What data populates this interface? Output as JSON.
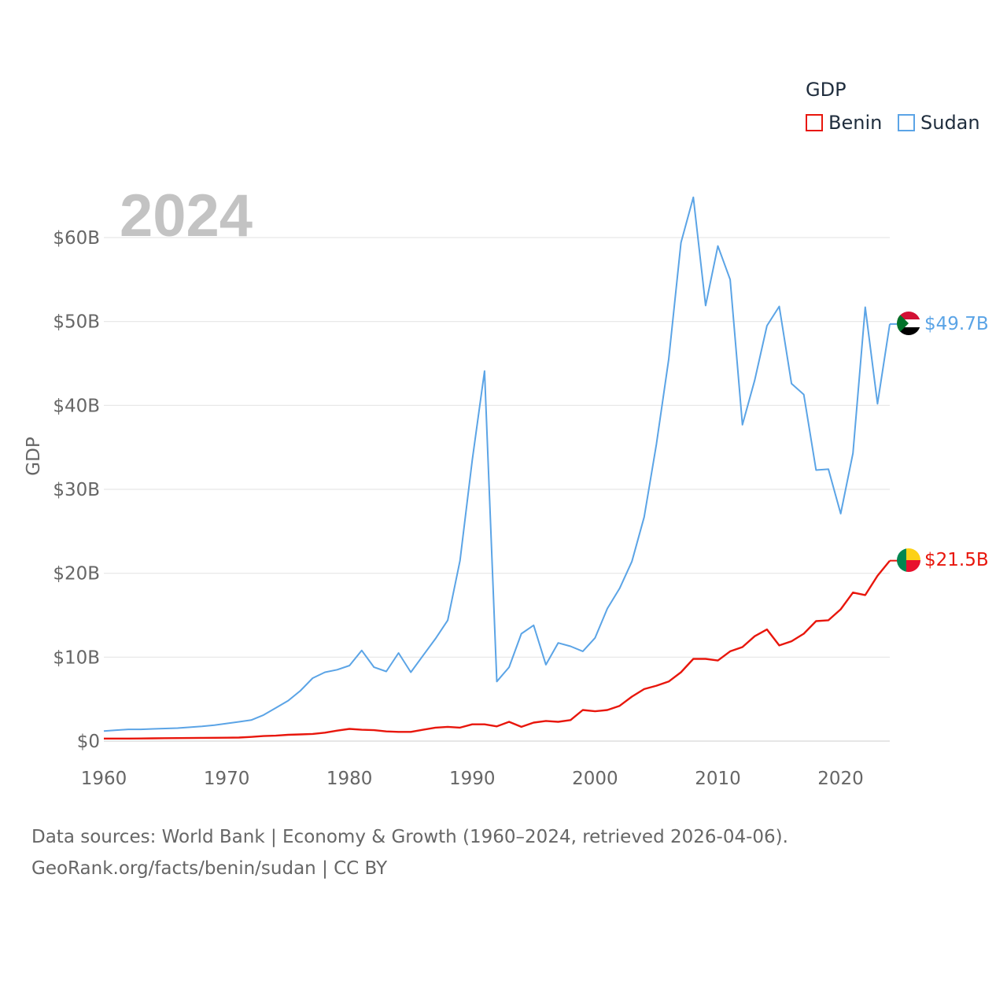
{
  "legend": {
    "title": "GDP",
    "items": [
      {
        "label": "Benin",
        "color": "#e8160c"
      },
      {
        "label": "Sudan",
        "color": "#5ba4e6"
      }
    ]
  },
  "footer": {
    "line1": "Data sources: World Bank | Economy & Growth (1960–2024, retrieved 2026-04-06).",
    "line2": "GeoRank.org/facts/benin/sudan | CC BY"
  },
  "chart_data": {
    "type": "line",
    "year_label": "2024",
    "ylabel": "GDP",
    "xlabel": "",
    "xlim": [
      1960,
      2024
    ],
    "ylim": [
      0,
      60
    ],
    "x_ticks": [
      1960,
      1970,
      1980,
      1990,
      2000,
      2010,
      2020
    ],
    "x_tick_labels": [
      "1960",
      "1970",
      "1980",
      "1990",
      "2000",
      "2010",
      "2020"
    ],
    "y_ticks": [
      0,
      10,
      20,
      30,
      40,
      50,
      60
    ],
    "y_tick_labels": [
      "$0",
      "$10B",
      "$20B",
      "$30B",
      "$40B",
      "$50B",
      "$60B"
    ],
    "units": "billions USD",
    "x": [
      1960,
      1961,
      1962,
      1963,
      1964,
      1965,
      1966,
      1967,
      1968,
      1969,
      1970,
      1971,
      1972,
      1973,
      1974,
      1975,
      1976,
      1977,
      1978,
      1979,
      1980,
      1981,
      1982,
      1983,
      1984,
      1985,
      1986,
      1987,
      1988,
      1989,
      1990,
      1991,
      1992,
      1993,
      1994,
      1995,
      1996,
      1997,
      1998,
      1999,
      2000,
      2001,
      2002,
      2003,
      2004,
      2005,
      2006,
      2007,
      2008,
      2009,
      2010,
      2011,
      2012,
      2013,
      2014,
      2015,
      2016,
      2017,
      2018,
      2019,
      2020,
      2021,
      2022,
      2023,
      2024
    ],
    "series": [
      {
        "name": "Sudan",
        "color": "#5ba4e6",
        "end_label": "$49.7B",
        "values": [
          1.2,
          1.3,
          1.4,
          1.4,
          1.45,
          1.5,
          1.55,
          1.65,
          1.75,
          1.9,
          2.1,
          2.3,
          2.5,
          3.1,
          3.95,
          4.8,
          6.0,
          7.5,
          8.2,
          8.5,
          9.0,
          10.8,
          8.8,
          8.3,
          10.5,
          8.2,
          10.2,
          12.2,
          14.4,
          21.5,
          33.5,
          44.1,
          7.1,
          8.8,
          12.8,
          13.8,
          9.1,
          11.7,
          11.3,
          10.7,
          12.3,
          15.8,
          18.2,
          21.4,
          26.7,
          35.4,
          45.5,
          59.4,
          64.8,
          51.9,
          59.0,
          55.0,
          37.7,
          43.0,
          49.5,
          51.8,
          42.6,
          41.3,
          32.3,
          32.4,
          27.1,
          34.3,
          51.7,
          40.2,
          49.7
        ]
      },
      {
        "name": "Benin",
        "color": "#e8160c",
        "end_label": "$21.5B",
        "values": [
          0.3,
          0.3,
          0.3,
          0.31,
          0.33,
          0.35,
          0.36,
          0.37,
          0.38,
          0.39,
          0.4,
          0.42,
          0.5,
          0.6,
          0.65,
          0.75,
          0.8,
          0.85,
          1.0,
          1.25,
          1.45,
          1.35,
          1.3,
          1.15,
          1.1,
          1.1,
          1.35,
          1.6,
          1.7,
          1.6,
          2.0,
          2.0,
          1.75,
          2.3,
          1.7,
          2.2,
          2.4,
          2.3,
          2.5,
          3.7,
          3.55,
          3.7,
          4.2,
          5.3,
          6.2,
          6.6,
          7.1,
          8.2,
          9.8,
          9.8,
          9.6,
          10.7,
          11.2,
          12.5,
          13.3,
          11.4,
          11.9,
          12.8,
          14.3,
          14.4,
          15.7,
          17.7,
          17.4,
          19.7,
          21.5
        ]
      }
    ]
  }
}
